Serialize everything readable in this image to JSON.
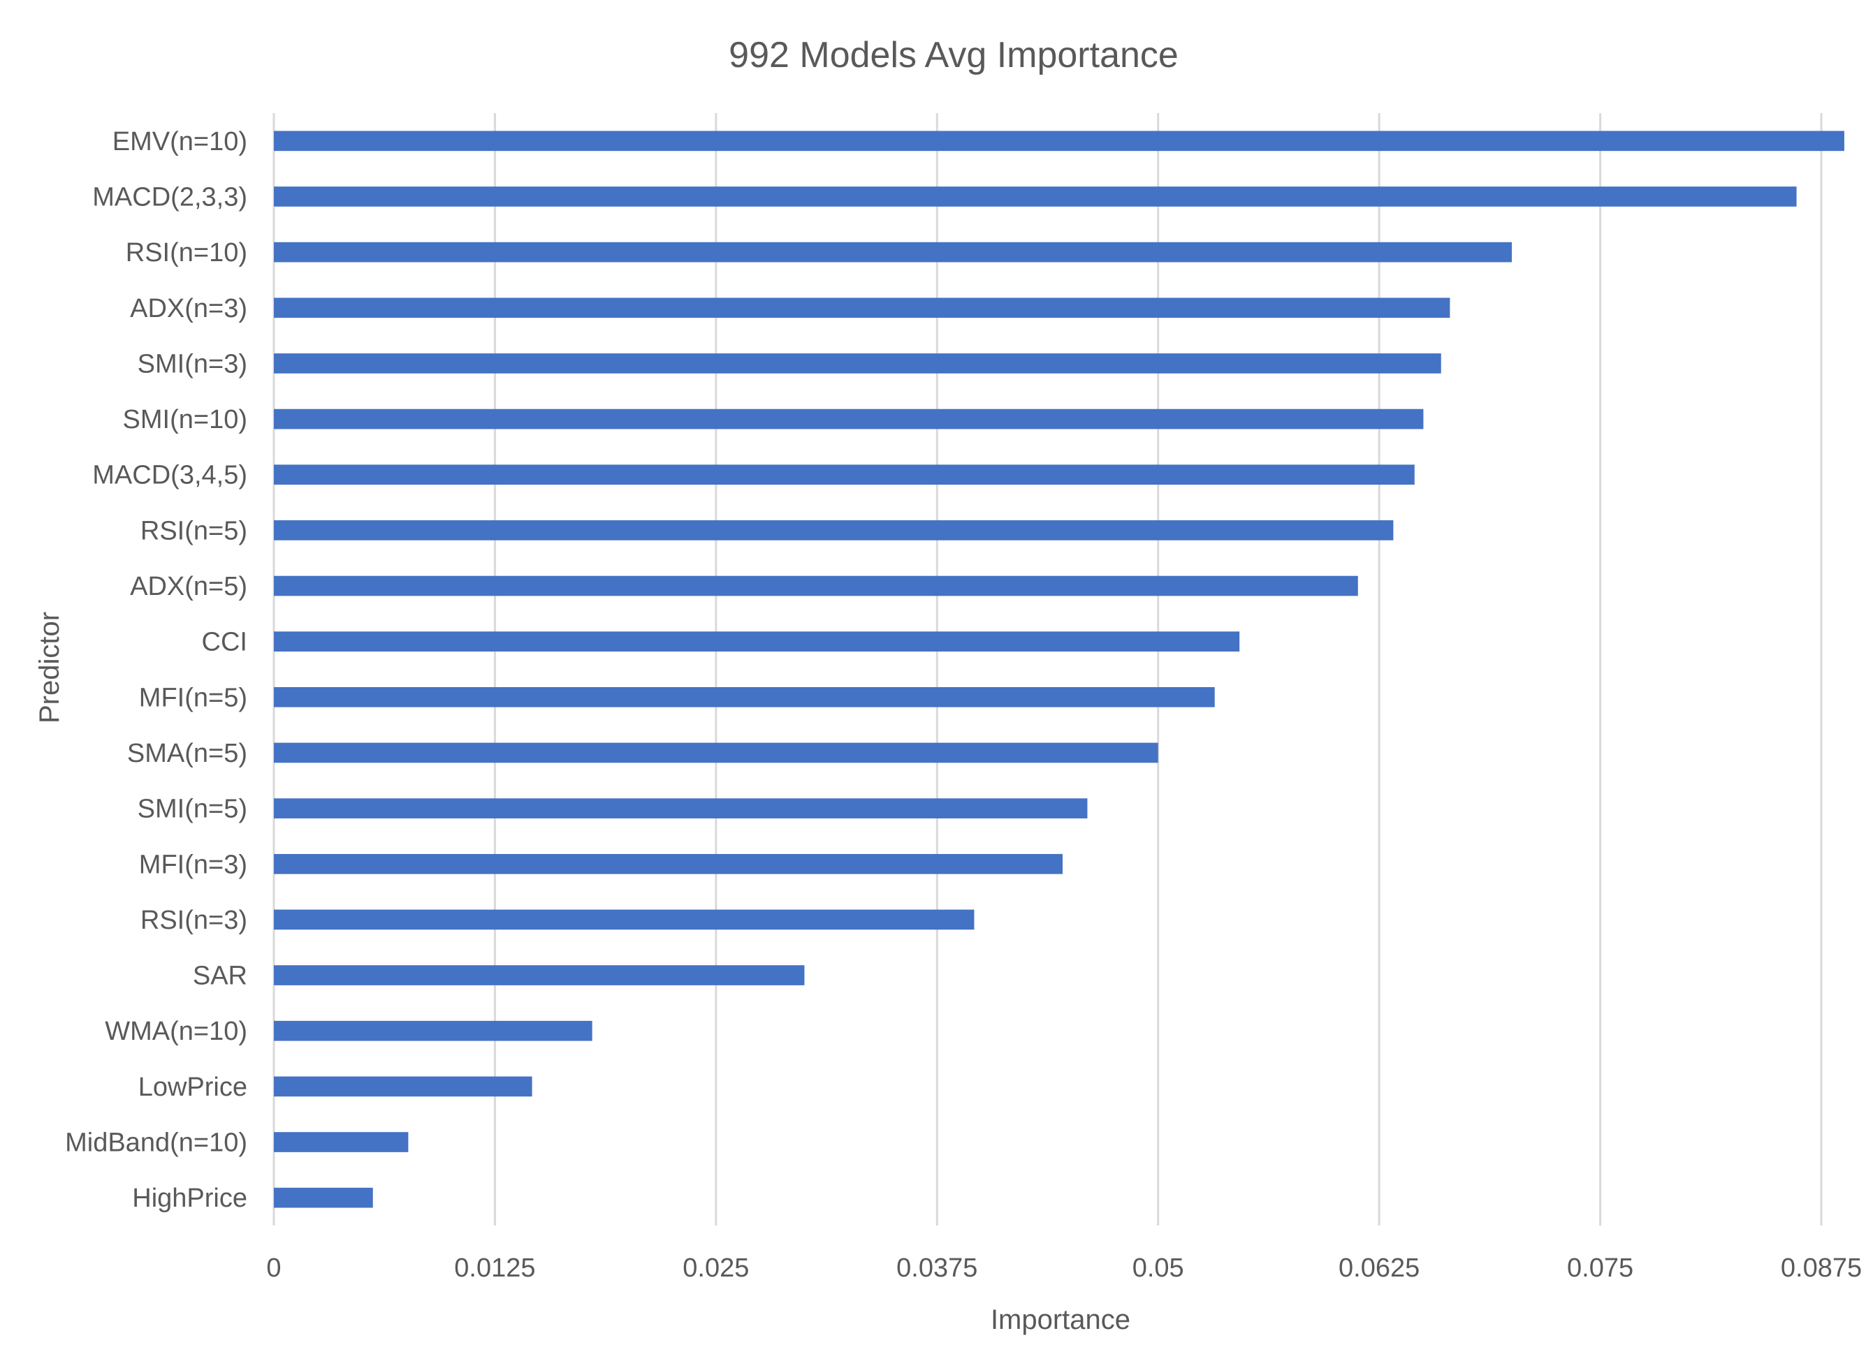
{
  "chart_data": {
    "type": "bar",
    "orientation": "horizontal",
    "title": "992 Models Avg Importance",
    "xlabel": "Importance",
    "ylabel": "Predictor",
    "xlim": [
      0,
      0.0875
    ],
    "xticks": [
      "0",
      "0.0125",
      "0.025",
      "0.0375",
      "0.05",
      "0.0625",
      "0.075",
      "0.0875"
    ],
    "grid": true,
    "legend": "none",
    "bar_color": "#4472C4",
    "categories": [
      "EMV(n=10)",
      "MACD(2,3,3)",
      "RSI(n=10)",
      "ADX(n=3)",
      "SMI(n=3)",
      "SMI(n=10)",
      "MACD(3,4,5)",
      "RSI(n=5)",
      "ADX(n=5)",
      "CCI",
      "MFI(n=5)",
      "SMA(n=5)",
      "SMI(n=5)",
      "MFI(n=3)",
      "RSI(n=3)",
      "SAR",
      "WMA(n=10)",
      "LowPrice",
      "MidBand(n=10)",
      "HighPrice"
    ],
    "values": [
      0.0888,
      0.0861,
      0.07,
      0.0665,
      0.066,
      0.065,
      0.0645,
      0.0633,
      0.0613,
      0.0546,
      0.0532,
      0.05,
      0.046,
      0.0446,
      0.0396,
      0.03,
      0.018,
      0.0146,
      0.0076,
      0.0056
    ]
  }
}
